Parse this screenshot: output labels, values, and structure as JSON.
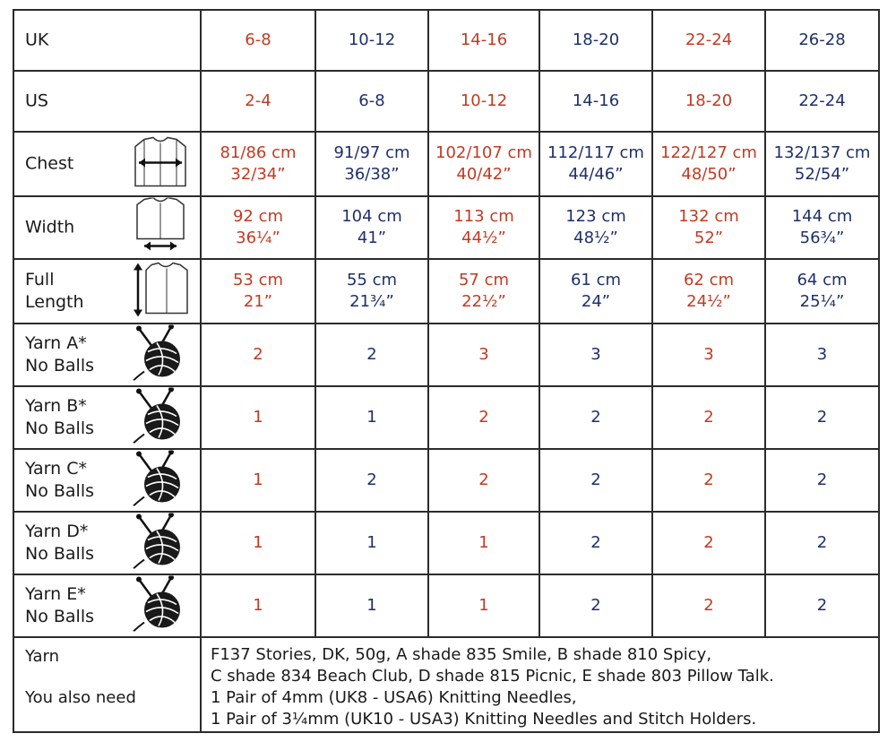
{
  "colors": {
    "red": "#c23a22",
    "blue": "#1e2f6b",
    "text": "#1a1a1a",
    "grid": "#2b2b2b"
  },
  "column_colors": [
    "red",
    "blue",
    "red",
    "blue",
    "red",
    "blue"
  ],
  "rows": [
    {
      "label": [
        "UK"
      ],
      "icon": "",
      "values": [
        [
          "6-8"
        ],
        [
          "10-12"
        ],
        [
          "14-16"
        ],
        [
          "18-20"
        ],
        [
          "22-24"
        ],
        [
          "26-28"
        ]
      ]
    },
    {
      "label": [
        "US"
      ],
      "icon": "",
      "values": [
        [
          "2-4"
        ],
        [
          "6-8"
        ],
        [
          "10-12"
        ],
        [
          "14-16"
        ],
        [
          "18-20"
        ],
        [
          "22-24"
        ]
      ]
    },
    {
      "label": [
        "Chest"
      ],
      "icon": "chest-measure-icon",
      "values": [
        [
          "81/86 cm",
          "32/34”"
        ],
        [
          "91/97 cm",
          "36/38”"
        ],
        [
          "102/107 cm",
          "40/42”"
        ],
        [
          "112/117 cm",
          "44/46”"
        ],
        [
          "122/127 cm",
          "48/50”"
        ],
        [
          "132/137 cm",
          "52/54”"
        ]
      ]
    },
    {
      "label": [
        "Width"
      ],
      "icon": "width-measure-icon",
      "values": [
        [
          "92 cm",
          "36¼”"
        ],
        [
          "104 cm",
          "41”"
        ],
        [
          "113 cm",
          "44½”"
        ],
        [
          "123 cm",
          "48½”"
        ],
        [
          "132 cm",
          "52”"
        ],
        [
          "144 cm",
          "56¾”"
        ]
      ]
    },
    {
      "label": [
        "Full",
        "Length"
      ],
      "icon": "length-measure-icon",
      "values": [
        [
          "53 cm",
          "21”"
        ],
        [
          "55 cm",
          "21¾”"
        ],
        [
          "57 cm",
          "22½”"
        ],
        [
          "61 cm",
          "24”"
        ],
        [
          "62 cm",
          "24½”"
        ],
        [
          "64 cm",
          "25¼”"
        ]
      ]
    },
    {
      "label": [
        "Yarn A*",
        "No Balls"
      ],
      "icon": "yarn-ball-icon",
      "values": [
        [
          "2"
        ],
        [
          "2"
        ],
        [
          "3"
        ],
        [
          "3"
        ],
        [
          "3"
        ],
        [
          "3"
        ]
      ]
    },
    {
      "label": [
        "Yarn B*",
        "No Balls"
      ],
      "icon": "yarn-ball-icon",
      "values": [
        [
          "1"
        ],
        [
          "1"
        ],
        [
          "2"
        ],
        [
          "2"
        ],
        [
          "2"
        ],
        [
          "2"
        ]
      ]
    },
    {
      "label": [
        "Yarn C*",
        "No Balls"
      ],
      "icon": "yarn-ball-icon",
      "values": [
        [
          "1"
        ],
        [
          "2"
        ],
        [
          "2"
        ],
        [
          "2"
        ],
        [
          "2"
        ],
        [
          "2"
        ]
      ]
    },
    {
      "label": [
        "Yarn D*",
        "No Balls"
      ],
      "icon": "yarn-ball-icon",
      "values": [
        [
          "1"
        ],
        [
          "1"
        ],
        [
          "1"
        ],
        [
          "2"
        ],
        [
          "2"
        ],
        [
          "2"
        ]
      ]
    },
    {
      "label": [
        "Yarn E*",
        "No Balls"
      ],
      "icon": "yarn-ball-icon",
      "values": [
        [
          "1"
        ],
        [
          "1"
        ],
        [
          "1"
        ],
        [
          "2"
        ],
        [
          "2"
        ],
        [
          "2"
        ]
      ]
    }
  ],
  "notes": {
    "yarn_label": "Yarn",
    "also_need_label": "You also need",
    "lines": [
      "F137 Stories, DK, 50g, A shade 835 Smile, B shade 810 Spicy,",
      "C shade 834 Beach Club, D shade 815 Picnic, E shade 803 Pillow Talk.",
      "1 Pair of 4mm (UK8 - USA6) Knitting Needles,",
      "1 Pair of 3¼mm (UK10 - USA3) Knitting Needles and Stitch Holders."
    ]
  }
}
